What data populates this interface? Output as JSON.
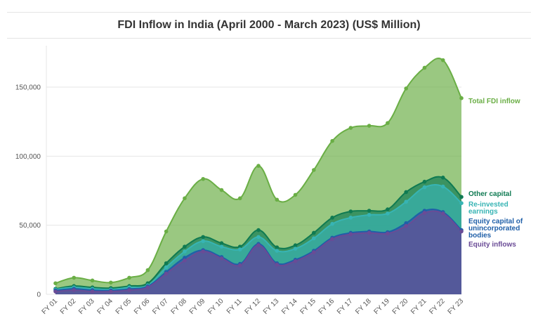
{
  "chart_data": {
    "type": "area",
    "title": "FDI Inflow in India (April 2000 - March 2023) (US$ Million)",
    "categories": [
      "FY 01",
      "FY 02",
      "FY 03",
      "FY 04",
      "FY 05",
      "FY 06",
      "FY 07",
      "FY 08",
      "FY 09",
      "FY 10",
      "FY 11",
      "FY 12",
      "FY 13",
      "FY 14",
      "FY 15",
      "FY 16",
      "FY 17",
      "FY 18",
      "FY 19",
      "FY 20",
      "FY 21",
      "FY 22",
      "FY 23"
    ],
    "ylim": [
      0,
      180000
    ],
    "yticks": [
      0,
      50000,
      100000,
      150000
    ],
    "ytick_labels": [
      "0",
      "50,000",
      "100,000",
      "150,000"
    ],
    "grid": true,
    "series": [
      {
        "name": "Total FDI inflow",
        "color": "#6aae45",
        "values": [
          8000,
          12000,
          10000,
          8500,
          12000,
          17500,
          45500,
          69500,
          83500,
          75500,
          69500,
          93000,
          68500,
          72000,
          90000,
          111000,
          120500,
          122000,
          124000,
          149000,
          164000,
          169500,
          142000
        ]
      },
      {
        "name": "Other capital",
        "color": "#0f7a52",
        "values": [
          4000,
          6000,
          5000,
          4500,
          6000,
          8000,
          22500,
          34500,
          41500,
          37000,
          34500,
          46500,
          34000,
          35500,
          44500,
          55500,
          60000,
          60500,
          61500,
          74000,
          81500,
          84500,
          70500
        ]
      },
      {
        "name": "Re-invested earnings",
        "color": "#37b4b4",
        "values": [
          3500,
          5000,
          4000,
          3500,
          5000,
          6500,
          19500,
          31000,
          38500,
          34500,
          32500,
          41500,
          31500,
          33000,
          40500,
          51000,
          55500,
          57500,
          58500,
          67000,
          77500,
          78000,
          66000
        ]
      },
      {
        "name": "Equity capital of unincorporated bodies",
        "color": "#1f5fa8",
        "values": [
          2800,
          4000,
          3000,
          2800,
          3800,
          5800,
          16200,
          26500,
          32000,
          27000,
          22000,
          36500,
          22500,
          25000,
          31500,
          41000,
          44500,
          45500,
          45000,
          51500,
          60500,
          59500,
          46500
        ]
      },
      {
        "name": "Equity inflows",
        "color": "#6a4b96",
        "values": [
          2000,
          3000,
          2000,
          2000,
          3000,
          5000,
          15000,
          24500,
          31000,
          26000,
          21000,
          35500,
          21500,
          24000,
          30500,
          40000,
          43500,
          44500,
          44000,
          49500,
          59000,
          58500,
          45500
        ]
      }
    ],
    "end_labels": [
      {
        "text": "Total FDI inflow",
        "color": "#6aae45"
      },
      {
        "text": "Other capital",
        "color": "#0f7a52"
      },
      {
        "text": "Re-invested earnings",
        "color": "#37b4b4"
      },
      {
        "text": "Equity capital of unincorporated bodies",
        "color": "#1f5fa8"
      },
      {
        "text": "Equity inflows",
        "color": "#6a4b96"
      }
    ]
  }
}
